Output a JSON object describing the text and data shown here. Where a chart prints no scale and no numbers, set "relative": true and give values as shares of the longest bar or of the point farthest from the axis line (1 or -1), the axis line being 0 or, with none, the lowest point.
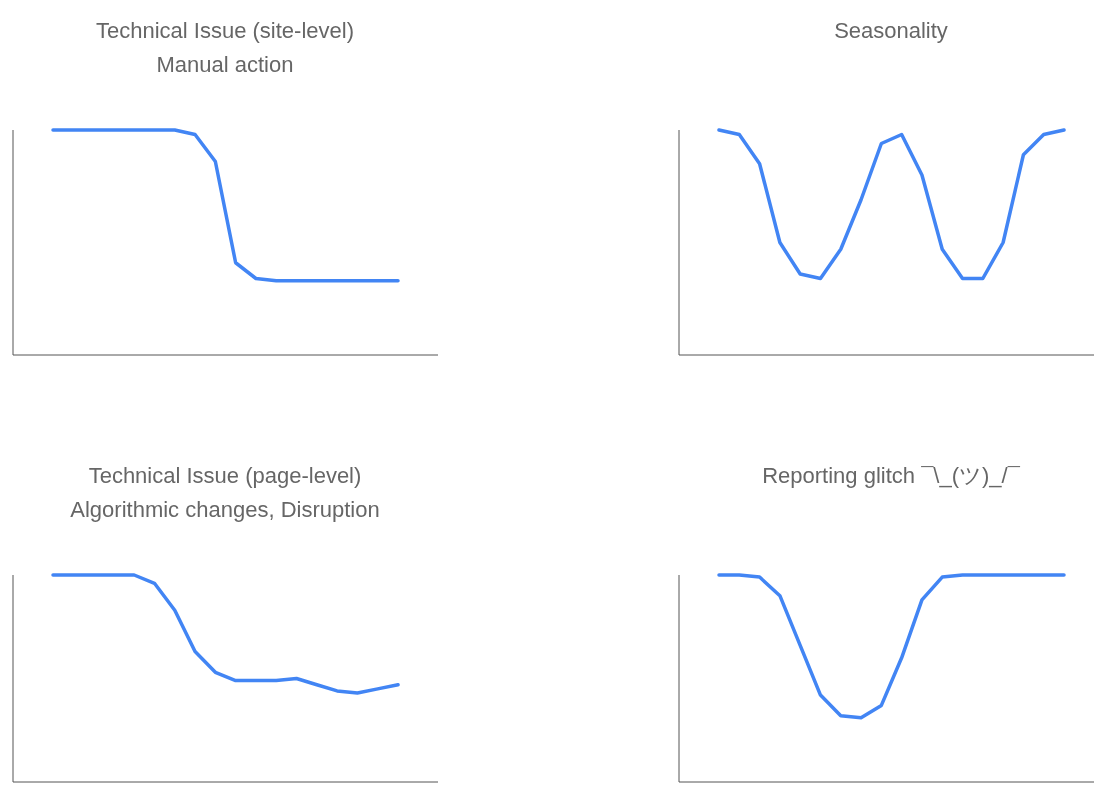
{
  "chart_data": [
    {
      "type": "line",
      "title": "Technical Issue (site-level)",
      "subtitle": "Manual action",
      "relative": true,
      "color": "#4285f4",
      "categories": [
        null,
        null,
        null,
        null,
        null,
        null,
        null,
        null,
        null,
        null,
        null,
        null,
        null,
        null,
        null,
        null,
        null,
        null
      ],
      "values": [
        1,
        1,
        1,
        1,
        1,
        1,
        1,
        0.98,
        0.86,
        0.41,
        0.34,
        0.33,
        0.33,
        0.33,
        0.33,
        0.33,
        0.33,
        0.33
      ]
    },
    {
      "type": "line",
      "title": "Seasonality",
      "relative": true,
      "color": "#4285f4",
      "categories": [
        null,
        null,
        null,
        null,
        null,
        null,
        null,
        null,
        null,
        null,
        null,
        null,
        null,
        null,
        null,
        null,
        null,
        null
      ],
      "values": [
        1,
        0.98,
        0.85,
        0.5,
        0.36,
        0.34,
        0.47,
        0.69,
        0.94,
        0.98,
        0.8,
        0.47,
        0.34,
        0.34,
        0.5,
        0.89,
        0.98,
        1
      ]
    },
    {
      "type": "line",
      "title": "Technical Issue (page-level)",
      "subtitle": "Algorithmic changes, Disruption",
      "relative": true,
      "color": "#4285f4",
      "categories": [
        null,
        null,
        null,
        null,
        null,
        null,
        null,
        null,
        null,
        null,
        null,
        null,
        null,
        null,
        null,
        null,
        null,
        null
      ],
      "values": [
        1,
        1,
        1,
        1,
        1,
        0.96,
        0.83,
        0.63,
        0.53,
        0.49,
        0.49,
        0.49,
        0.5,
        0.47,
        0.44,
        0.43,
        0.45,
        0.47
      ]
    },
    {
      "type": "line",
      "title": "Reporting glitch ¯\\_(ツ)_/¯",
      "relative": true,
      "color": "#4285f4",
      "categories": [
        null,
        null,
        null,
        null,
        null,
        null,
        null,
        null,
        null,
        null,
        null,
        null,
        null,
        null,
        null,
        null,
        null,
        null
      ],
      "values": [
        1,
        1,
        0.99,
        0.9,
        0.66,
        0.42,
        0.32,
        0.31,
        0.37,
        0.6,
        0.88,
        0.99,
        1,
        1,
        1,
        1,
        1,
        1
      ]
    }
  ]
}
